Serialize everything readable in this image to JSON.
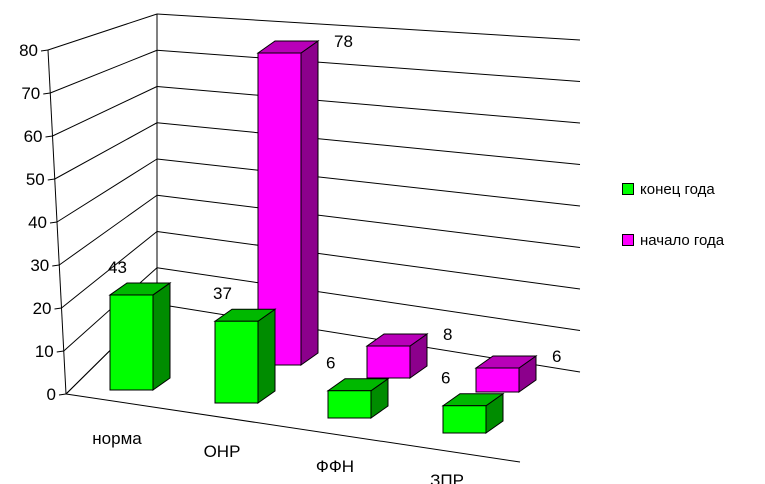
{
  "chart_data": {
    "type": "bar",
    "style": "3d-clustered",
    "categories": [
      "норма",
      "ОНР",
      "ФФН",
      "ЗПР"
    ],
    "series": [
      {
        "name": "конец года",
        "values": [
          43,
          37,
          6,
          6
        ],
        "color": "#00FF00"
      },
      {
        "name": "начало года",
        "values": [
          null,
          78,
          8,
          6
        ],
        "color": "#FF00FF"
      }
    ],
    "ylim": [
      0,
      80
    ],
    "yticks": [
      "0",
      "10",
      "20",
      "30",
      "40",
      "50",
      "60",
      "70",
      "80"
    ],
    "grid": true,
    "legend_position": "right"
  }
}
